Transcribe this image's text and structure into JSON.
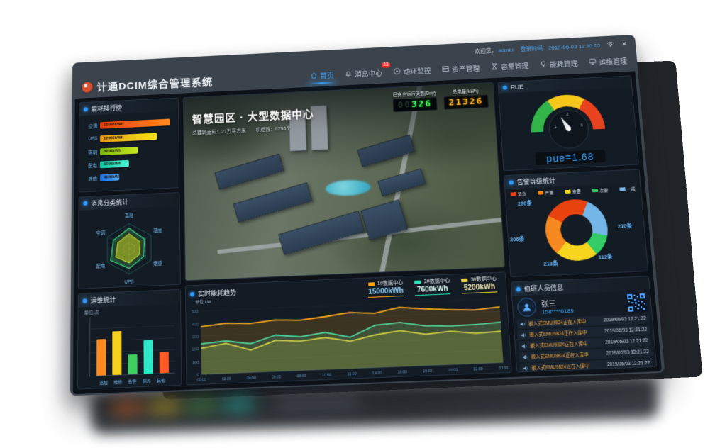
{
  "window": {
    "welcome_prefix": "欢迎您，",
    "username": "admin",
    "login_time": "登录时间：2019-06-03 11:30:20",
    "close_icon": "✕",
    "brand_title": "计通DCIM综合管理系统"
  },
  "nav": {
    "items": [
      {
        "id": "home",
        "label": "首页",
        "icon": "home-icon",
        "active": true
      },
      {
        "id": "messages",
        "label": "消息中心",
        "icon": "bell-icon",
        "badge": "23"
      },
      {
        "id": "env-monitor",
        "label": "动环监控",
        "icon": "monitor-icon"
      },
      {
        "id": "assets",
        "label": "资产管理",
        "icon": "server-icon"
      },
      {
        "id": "capacity",
        "label": "容量管理",
        "icon": "hourglass-icon"
      },
      {
        "id": "energy",
        "label": "能耗管理",
        "icon": "bulb-icon"
      },
      {
        "id": "ops",
        "label": "运维管理",
        "icon": "ops-icon"
      }
    ]
  },
  "hero": {
    "title": "智慧园区 · 大型数据中心",
    "subtitle_area": "总建筑面积：21万平方米",
    "subtitle_racks": "机柜数：8254个",
    "counters": [
      {
        "label": "已安全运行天数(Day)",
        "dim": "00",
        "value": "326",
        "color": "#3aff5a"
      },
      {
        "label": "总电量(kWh)",
        "dim": "",
        "value": "21326",
        "color": "#ffb41e"
      }
    ]
  },
  "panels": {
    "energy_rank_title": "能耗排行榜",
    "radar_title": "消息分类统计",
    "ops_title": "运维统计",
    "ops_unit": "单位:次",
    "trend_title": "实时能耗趋势",
    "trend_unit": "单位:kW",
    "pue_title": "PUE",
    "pue_display": "pue=1.68",
    "alarm_title": "告警等级统计",
    "duty_title": "值班人员信息",
    "duty_name": "张三",
    "duty_phone": "158****6189",
    "duty_messages": [
      {
        "text": "嵌入式EMU9824正在入库中",
        "time": "2019/06/03 12:21:22"
      },
      {
        "text": "嵌入式EMU9824正在入库中",
        "time": "2019/06/03 12:21:22"
      },
      {
        "text": "嵌入式EMU9824正在入库中",
        "time": "2019/06/03 12:21:22"
      },
      {
        "text": "嵌入式EMU9824正在入库中",
        "time": "2019/06/03 12:21:22"
      },
      {
        "text": "嵌入式EMU9824正在入库中",
        "time": "2019/06/03 12:21:22"
      }
    ]
  },
  "chart_data": [
    {
      "id": "energy_rank",
      "type": "bar",
      "orientation": "horizontal",
      "title": "能耗排行榜",
      "categories": [
        "空调",
        "UPS",
        "照明",
        "配电",
        "其他"
      ],
      "values": [
        15000,
        12300,
        8200,
        6200,
        4100
      ],
      "value_labels": [
        "15000kWh",
        "12300kWh",
        "8200kWh",
        "6200kWh",
        "4100kWh"
      ],
      "xlim": [
        0,
        16000
      ],
      "colors": [
        [
          "#e83c0a",
          "#ff8a1e"
        ],
        [
          "#e89b0e",
          "#f5e31e"
        ],
        [
          "#7ab80e",
          "#c8e81e"
        ],
        [
          "#0ec8a8",
          "#4ef5d0"
        ],
        [
          "#1e6fd9",
          "#4fa8f5"
        ]
      ]
    },
    {
      "id": "msg_radar",
      "type": "radar",
      "title": "消息分类统计",
      "axes": [
        "温度",
        "湿度",
        "烟感",
        "UPS",
        "配电",
        "空调"
      ],
      "values": [
        82,
        70,
        66,
        78,
        85,
        72
      ],
      "max": 100,
      "grid_color": "#2aa89b",
      "outer_stroke": "#3ddc82",
      "outer_fill": "rgba(80,200,80,0.22)",
      "inner_stroke": "#e0e81e",
      "inner_fill": "rgba(215,220,30,0.5)"
    },
    {
      "id": "ops_bar",
      "type": "bar",
      "orientation": "vertical",
      "title": "运维统计",
      "ylabel": "单位:次",
      "categories": [
        "巡检",
        "维修",
        "告警",
        "保养",
        "其他"
      ],
      "values": [
        62,
        75,
        33,
        57,
        36
      ],
      "ylim": [
        0,
        100
      ],
      "colors": [
        "#ff8a1e",
        "#f5d01e",
        "#3ecf5e",
        "#2ee6c8",
        "#ff5a24"
      ]
    },
    {
      "id": "trend",
      "type": "line",
      "title": "实时能耗趋势",
      "ylabel": "单位:kW",
      "x": [
        "00:00",
        "02:00",
        "04:00",
        "06:00",
        "08:00",
        "10:00",
        "12:00",
        "14:00",
        "16:00",
        "18:00",
        "20:00",
        "22:00",
        "00:00"
      ],
      "ylim": [
        0,
        500
      ],
      "yticks": [
        0,
        100,
        200,
        300,
        400,
        500
      ],
      "legend_position": "top-right",
      "grid": true,
      "series": [
        {
          "name": "1#数据中心",
          "total": "15000kWh",
          "color": "#f5a61e",
          "value_color": "#8fd4ff",
          "values": [
            375,
            395,
            385,
            405,
            395,
            415,
            440,
            425,
            465,
            445,
            430,
            420,
            435
          ]
        },
        {
          "name": "2#数据中心",
          "total": "7600kWh",
          "color": "#2ee0b8",
          "value_color": "#dffff6",
          "values": [
            240,
            255,
            225,
            285,
            265,
            290,
            245,
            330,
            345,
            310,
            300,
            305,
            315
          ]
        },
        {
          "name": "3#数据中心",
          "total": "5200kWh",
          "color": "#e8d53c",
          "value_color": "#f5ecb0",
          "values": [
            205,
            235,
            175,
            245,
            230,
            250,
            215,
            255,
            280,
            245,
            260,
            235,
            245
          ]
        }
      ]
    },
    {
      "id": "alarm_donut",
      "type": "pie",
      "title": "告警等级统计",
      "legend": [
        "紧急",
        "严重",
        "重要",
        "次要",
        "一般"
      ],
      "values": [
        230,
        206,
        213,
        112,
        210
      ],
      "labels": [
        "230条",
        "206条",
        "213条",
        "112条",
        "210条"
      ],
      "colors": [
        "#e8420e",
        "#f5881e",
        "#f5d51e",
        "#33cc66",
        "#74b6e8"
      ]
    },
    {
      "id": "pue_gauge",
      "type": "gauge",
      "title": "PUE",
      "value": 1.68,
      "display": "pue=1.68",
      "min": 1,
      "max": 3,
      "ticks": [
        "1",
        "2",
        "3"
      ],
      "zones": [
        "#33b54a",
        "#f5c718",
        "#e8421e"
      ]
    }
  ]
}
